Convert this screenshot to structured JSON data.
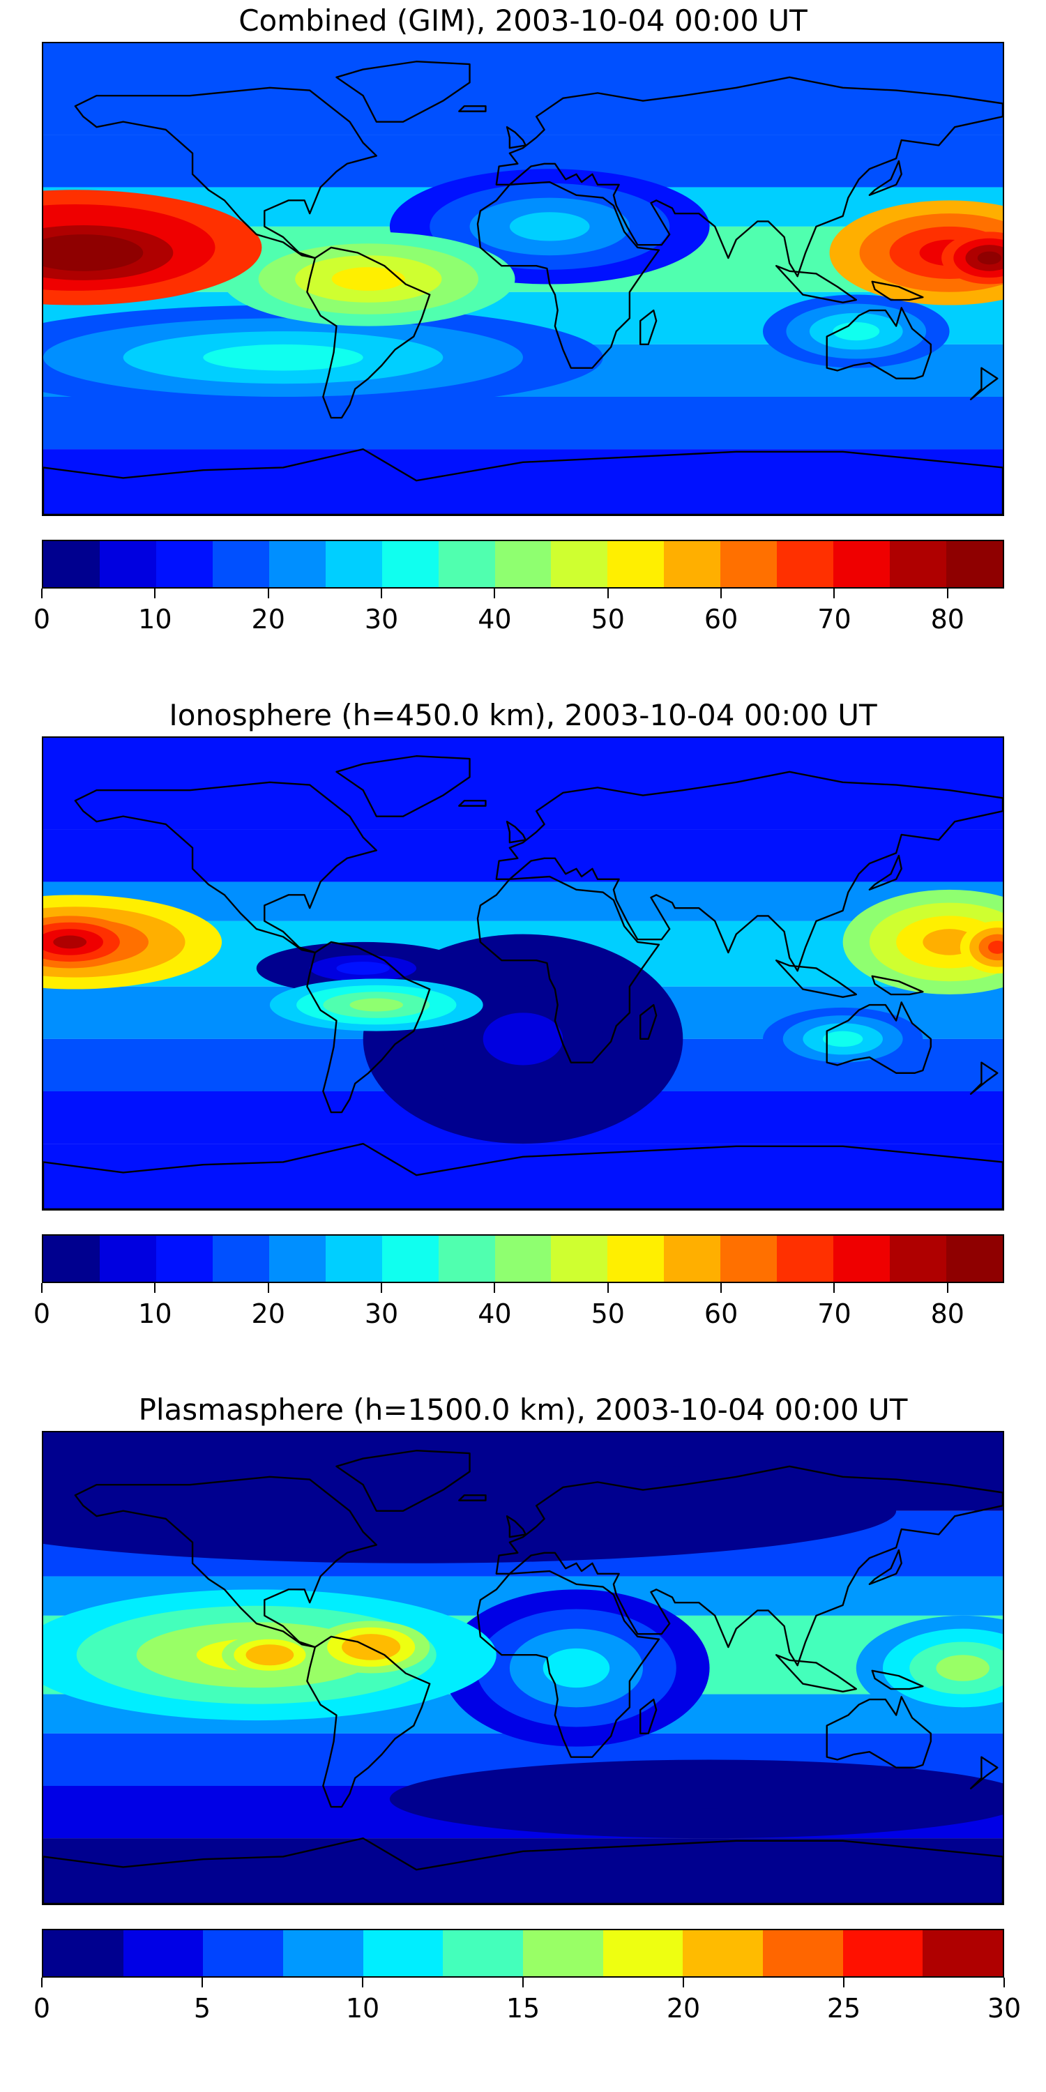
{
  "panels": [
    {
      "title": "Combined (GIM), 2003-10-04 00:00 UT",
      "colorbar": {
        "ticks": [
          "0",
          "10",
          "20",
          "30",
          "40",
          "50",
          "60",
          "70",
          "80"
        ],
        "min": 0,
        "max": 85,
        "step": 5
      },
      "blobs": [
        {
          "lon": -168,
          "lat": 12,
          "rx": 70,
          "ry": 22,
          "level": 80
        },
        {
          "lon": -165,
          "lat": 10,
          "rx": 45,
          "ry": 14,
          "level": 85
        },
        {
          "lon": 160,
          "lat": 10,
          "rx": 45,
          "ry": 20,
          "level": 70
        },
        {
          "lon": 175,
          "lat": 8,
          "rx": 18,
          "ry": 10,
          "level": 80
        },
        {
          "lon": -58,
          "lat": 0,
          "rx": 55,
          "ry": 18,
          "level": 50
        },
        {
          "lon": 125,
          "lat": -20,
          "rx": 35,
          "ry": 14,
          "level": 30
        },
        {
          "lon": -90,
          "lat": -30,
          "rx": 120,
          "ry": 20,
          "level": 30
        },
        {
          "lon": 10,
          "lat": 20,
          "rx": 60,
          "ry": 22,
          "level": 25
        }
      ]
    },
    {
      "title": "Ionosphere  (h=450.0 km), 2003-10-04 00:00 UT",
      "colorbar": {
        "ticks": [
          "0",
          "10",
          "20",
          "30",
          "40",
          "50",
          "60",
          "70",
          "80"
        ],
        "min": 0,
        "max": 85,
        "step": 5
      },
      "blobs": [
        {
          "lon": -168,
          "lat": 12,
          "rx": 55,
          "ry": 18,
          "level": 65
        },
        {
          "lon": -170,
          "lat": 12,
          "rx": 25,
          "ry": 10,
          "level": 75
        },
        {
          "lon": 160,
          "lat": 12,
          "rx": 40,
          "ry": 20,
          "level": 55
        },
        {
          "lon": 178,
          "lat": 10,
          "rx": 14,
          "ry": 10,
          "level": 65
        },
        {
          "lon": -55,
          "lat": -12,
          "rx": 40,
          "ry": 10,
          "level": 40
        },
        {
          "lon": -60,
          "lat": 2,
          "rx": 40,
          "ry": 10,
          "level": 10
        },
        {
          "lon": 0,
          "lat": -25,
          "rx": 60,
          "ry": 40,
          "level": 5
        },
        {
          "lon": 120,
          "lat": -25,
          "rx": 30,
          "ry": 12,
          "level": 30
        }
      ]
    },
    {
      "title": "Plasmasphere (h=1500.0 km), 2003-10-04 00:00 UT",
      "colorbar": {
        "ticks": [
          "0",
          "5",
          "10",
          "15",
          "20",
          "25",
          "30"
        ],
        "min": 0,
        "max": 30,
        "step": 2.5
      },
      "blobs": [
        {
          "lon": -100,
          "lat": 5,
          "rx": 90,
          "ry": 25,
          "level": 17.5
        },
        {
          "lon": -95,
          "lat": 5,
          "rx": 18,
          "ry": 8,
          "level": 22
        },
        {
          "lon": -57,
          "lat": 8,
          "rx": 22,
          "ry": 10,
          "level": 22
        },
        {
          "lon": 165,
          "lat": 0,
          "rx": 40,
          "ry": 20,
          "level": 15
        },
        {
          "lon": 20,
          "lat": 0,
          "rx": 50,
          "ry": 30,
          "level": 10
        },
        {
          "lon": 70,
          "lat": -50,
          "rx": 120,
          "ry": 15,
          "level": 2
        },
        {
          "lon": -40,
          "lat": 60,
          "rx": 180,
          "ry": 20,
          "level": 2
        }
      ]
    }
  ],
  "colors": {
    "jet17": [
      "#00008f",
      "#0000e0",
      "#0011ff",
      "#0050ff",
      "#008fff",
      "#00cfff",
      "#10ffef",
      "#50ffaf",
      "#8fff70",
      "#cfff30",
      "#ffef00",
      "#ffaf00",
      "#ff7000",
      "#ff3000",
      "#ef0000",
      "#af0000",
      "#8f0000"
    ],
    "jet12": [
      "#00008f",
      "#0000e6",
      "#0044ff",
      "#0099ff",
      "#00eeff",
      "#44ffbb",
      "#99ff66",
      "#eeff11",
      "#ffbb00",
      "#ff6600",
      "#ff1100",
      "#af0000"
    ]
  }
}
